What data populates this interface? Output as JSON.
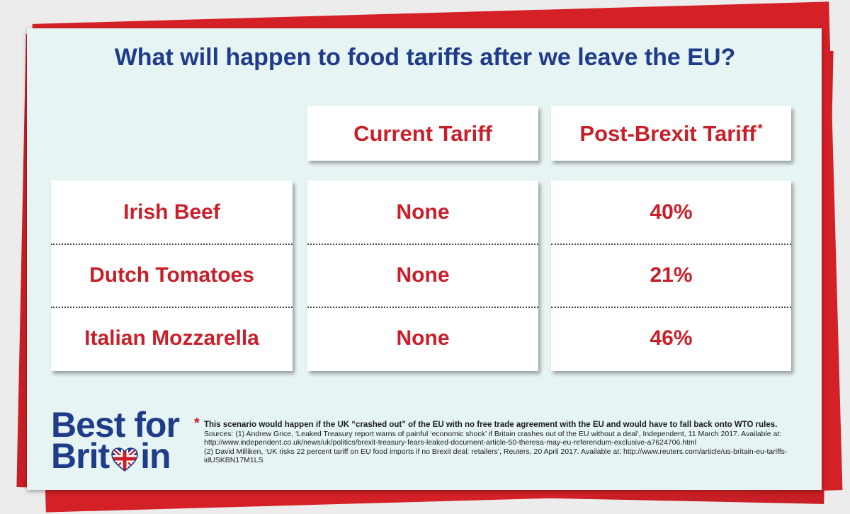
{
  "title": "What will happen to food tariffs after we leave the EU?",
  "chart_data": {
    "type": "table",
    "columns": [
      "",
      "Current Tariff",
      "Post-Brexit Tariff"
    ],
    "column_footnote_marker": "*",
    "rows": [
      {
        "item": "Irish Beef",
        "current": "None",
        "post_brexit": "40%",
        "post_brexit_value": 40
      },
      {
        "item": "Dutch Tomatoes",
        "current": "None",
        "post_brexit": "21%",
        "post_brexit_value": 21
      },
      {
        "item": "Italian Mozzarella",
        "current": "None",
        "post_brexit": "46%",
        "post_brexit_value": 46
      }
    ]
  },
  "logo": {
    "line1": "Best for",
    "line2_a": "Brit",
    "line2_b": "in",
    "heart_icon": "uk-flag-heart-icon"
  },
  "footnote": {
    "marker": "*",
    "text": "This scenario would happen if the UK “crashed out” of the EU with no free trade agreement with the EU and would have to fall back onto WTO rules.",
    "source1": "Sources: (1) Andrew Grice, ‘Leaked Treasury report warns of painful ‘economic shock’ if Britain crashes out of the EU without a deal’, Independent, 11 March 2017. Available at: http://www.independent.co.uk/news/uk/politics/brexit-treasury-fears-leaked-document-article-50-theresa-may-eu-referendum-exclusive-a7624706.html",
    "source2": "(2) David Milliken, ‘UK risks 22 percent tariff on EU food imports if no Brexit deal: retailers’, Reuters, 20 April 2017. Available at: http://www.reuters.com/article/us-britain-eu-tariffs-idUSKBN17M1LS"
  },
  "colors": {
    "red": "#c8202a",
    "navy": "#1f3c8a",
    "card": "#e7f4f4"
  }
}
